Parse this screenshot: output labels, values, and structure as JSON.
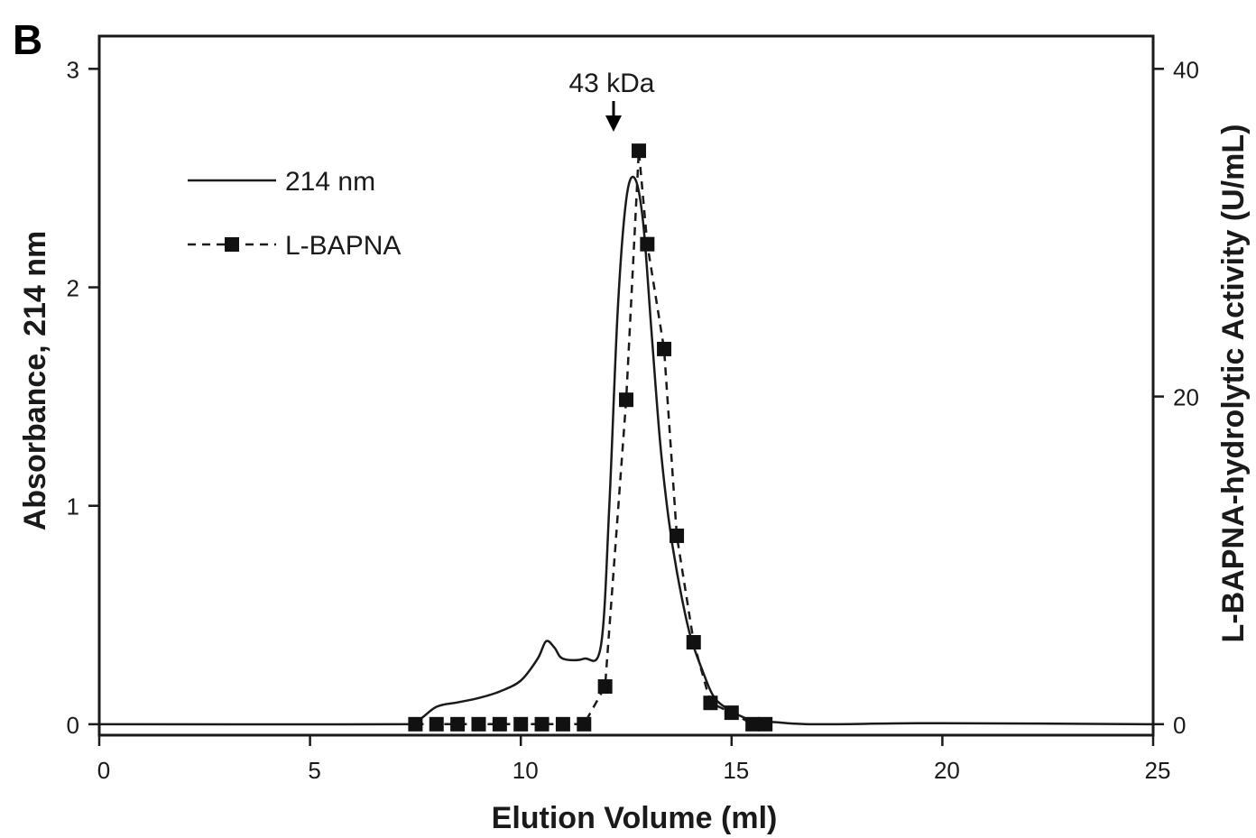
{
  "panel_label": "B",
  "chart_data": {
    "type": "line",
    "xlabel": "Elution Volume (ml)",
    "ylabel": "Absorbance, 214 nm",
    "y2label": "L-BAPNA-hydrolytic Activity (U/mL)",
    "xlim": [
      0,
      25
    ],
    "ylim": [
      -0.05,
      3.15
    ],
    "y2lim": [
      -0.67,
      42
    ],
    "xticks": [
      0,
      5,
      10,
      15,
      20,
      25
    ],
    "yticks": [
      0,
      1,
      2,
      3
    ],
    "y2ticks": [
      0,
      20,
      40
    ],
    "grid": false,
    "legend_position": "upper-left",
    "annotations": [
      {
        "text": "43 kDa",
        "x": 12.2,
        "y": 2.6
      }
    ],
    "colors": {
      "line": "#1a1a1a",
      "marker": "#111111",
      "axis": "#1a1a1a"
    },
    "series": [
      {
        "name": "214 nm",
        "axis": "left",
        "style": "solid",
        "x": [
          0,
          7.0,
          7.5,
          8.0,
          8.5,
          9.0,
          9.5,
          10.0,
          10.4,
          10.6,
          10.8,
          11.0,
          11.5,
          11.9,
          12.1,
          12.3,
          12.5,
          12.7,
          12.9,
          13.1,
          13.3,
          13.5,
          13.7,
          14.0,
          14.3,
          14.6,
          15.0,
          15.3,
          15.6,
          16.0,
          17.0,
          20.0,
          25.0
        ],
        "y": [
          0.0,
          0.0,
          0.01,
          0.08,
          0.1,
          0.12,
          0.15,
          0.2,
          0.3,
          0.38,
          0.35,
          0.3,
          0.3,
          0.36,
          1.0,
          1.9,
          2.4,
          2.5,
          2.3,
          1.8,
          1.3,
          0.95,
          0.7,
          0.42,
          0.25,
          0.12,
          0.06,
          0.03,
          0.01,
          0.01,
          0.0,
          0.005,
          0.0
        ]
      },
      {
        "name": "L-BAPNA",
        "axis": "right",
        "style": "dashed",
        "marker": "square",
        "x": [
          7.5,
          8.0,
          8.5,
          9.0,
          9.5,
          10.0,
          10.5,
          11.0,
          11.5,
          12.0,
          12.5,
          12.8,
          13.0,
          13.4,
          13.7,
          14.1,
          14.5,
          15.0,
          15.5,
          15.8
        ],
        "y": [
          0.0,
          0.0,
          0.0,
          0.0,
          0.0,
          0.0,
          0.0,
          0.0,
          0.0,
          2.3,
          19.8,
          35.0,
          29.3,
          22.9,
          11.5,
          5.0,
          1.3,
          0.7,
          0.0,
          0.0
        ]
      }
    ]
  }
}
